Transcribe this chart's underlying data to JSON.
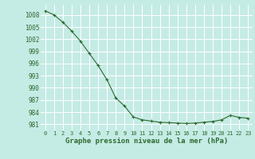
{
  "x": [
    0,
    1,
    2,
    3,
    4,
    5,
    6,
    7,
    8,
    9,
    10,
    11,
    12,
    13,
    14,
    15,
    16,
    17,
    18,
    19,
    20,
    21,
    22,
    23
  ],
  "y": [
    1009.0,
    1008.0,
    1006.2,
    1004.0,
    1001.5,
    998.5,
    995.5,
    992.0,
    987.5,
    985.5,
    982.8,
    982.1,
    981.8,
    981.5,
    981.4,
    981.3,
    981.2,
    981.3,
    981.5,
    981.7,
    982.1,
    983.2,
    982.7,
    982.5
  ],
  "line_color": "#2d6a2d",
  "marker": "+",
  "markersize": 3,
  "linewidth": 0.8,
  "bg_color": "#c5ebe5",
  "grid_color": "#ffffff",
  "xlabel": "Graphe pression niveau de la mer (hPa)",
  "xlabel_fontsize": 6.5,
  "xlabel_color": "#2d6a2d",
  "tick_color": "#2d6a2d",
  "ytick_labels": [
    981,
    984,
    987,
    990,
    993,
    996,
    999,
    1002,
    1005,
    1008
  ],
  "ylim": [
    979.5,
    1010.5
  ],
  "xlim": [
    -0.5,
    23.5
  ],
  "tick_fontsize": 5.5,
  "xtick_fontsize": 5.0
}
